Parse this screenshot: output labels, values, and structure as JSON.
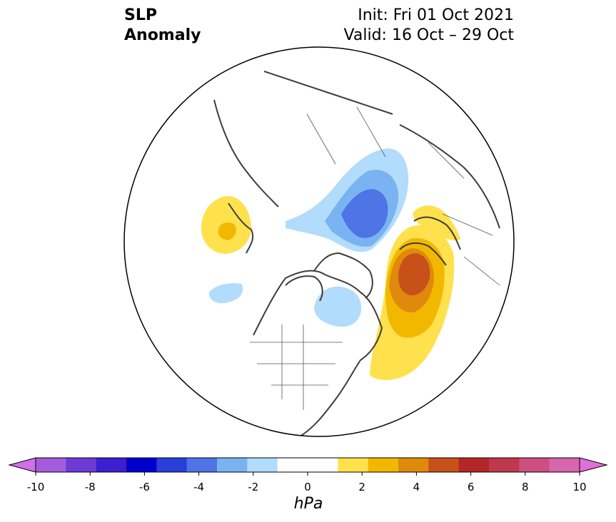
{
  "header": {
    "title_line1": "SLP",
    "title_line2": "Anomaly",
    "init": "Init: Fri 01 Oct 2021",
    "valid": "Valid: 16 Oct – 29 Oct"
  },
  "map": {
    "projection": "north-polar-stereographic",
    "variable": "sea-level-pressure-anomaly",
    "features": [
      {
        "name": "negative-anomaly-arctic-siberia",
        "min_hpa": -4
      },
      {
        "name": "negative-anomaly-hudson-bay",
        "min_hpa": -2
      },
      {
        "name": "negative-anomaly-alaska-gulf",
        "min_hpa": -1
      },
      {
        "name": "positive-anomaly-europe-atlantic",
        "max_hpa": 6
      },
      {
        "name": "positive-anomaly-north-atlantic",
        "max_hpa": 2
      },
      {
        "name": "positive-anomaly-east-asia",
        "max_hpa": 3
      },
      {
        "name": "positive-anomaly-black-sea",
        "max_hpa": 2
      }
    ]
  },
  "colorbar": {
    "unit": "hPa",
    "min": -10,
    "max": 10,
    "step": 1,
    "ticks": [
      "-10",
      "-8",
      "-6",
      "-4",
      "-2",
      "0",
      "2",
      "4",
      "6",
      "8",
      "10"
    ],
    "colors": [
      "#a45cde",
      "#6e3ad6",
      "#3c1fd0",
      "#0000cc",
      "#2a3fd9",
      "#4f74e6",
      "#7ab3f2",
      "#b2dcfb",
      "#ffffff",
      "#ffffff",
      "#ffe14d",
      "#f2b800",
      "#e08a0c",
      "#c8511a",
      "#b42626",
      "#c0384d",
      "#cc4f80",
      "#d866ad"
    ],
    "extend_low_color": "#d070e8",
    "extend_high_color": "#e070d8"
  }
}
